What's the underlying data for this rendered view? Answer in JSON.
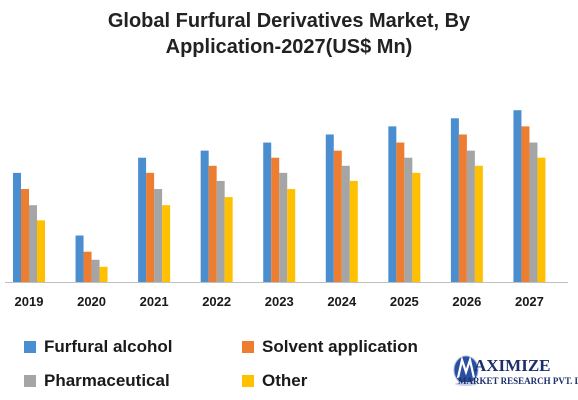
{
  "chart_data": {
    "type": "bar",
    "title_lines": [
      "Global Furfural Derivatives Market, By",
      "Application-2027(US$ Mn)"
    ],
    "categories": [
      "2019",
      "2020",
      "2021",
      "2022",
      "2023",
      "2024",
      "2025",
      "2026",
      "2027"
    ],
    "series": [
      {
        "name": "Furfural alcohol",
        "color": "#4a8ed0",
        "values": [
          108,
          46,
          123,
          130,
          138,
          146,
          154,
          162,
          170
        ]
      },
      {
        "name": "Solvent application",
        "color": "#ed7d31",
        "values": [
          92,
          30,
          108,
          115,
          123,
          130,
          138,
          146,
          154
        ]
      },
      {
        "name": "Pharmaceutical",
        "color": "#a5a5a5",
        "values": [
          76,
          22,
          92,
          100,
          108,
          115,
          123,
          130,
          138
        ]
      },
      {
        "name": "Other",
        "color": "#ffc000",
        "values": [
          61,
          15,
          76,
          84,
          92,
          100,
          108,
          115,
          123
        ]
      }
    ],
    "xlabel": "",
    "ylabel": "",
    "ylim": [
      0,
      190
    ],
    "grid": false,
    "legend_position": "bottom"
  },
  "watermark": {
    "word": "AXIMIZE",
    "subtitle": "MARKET RESEARCH PVT. LTD.",
    "icon": "globe-m-icon"
  }
}
